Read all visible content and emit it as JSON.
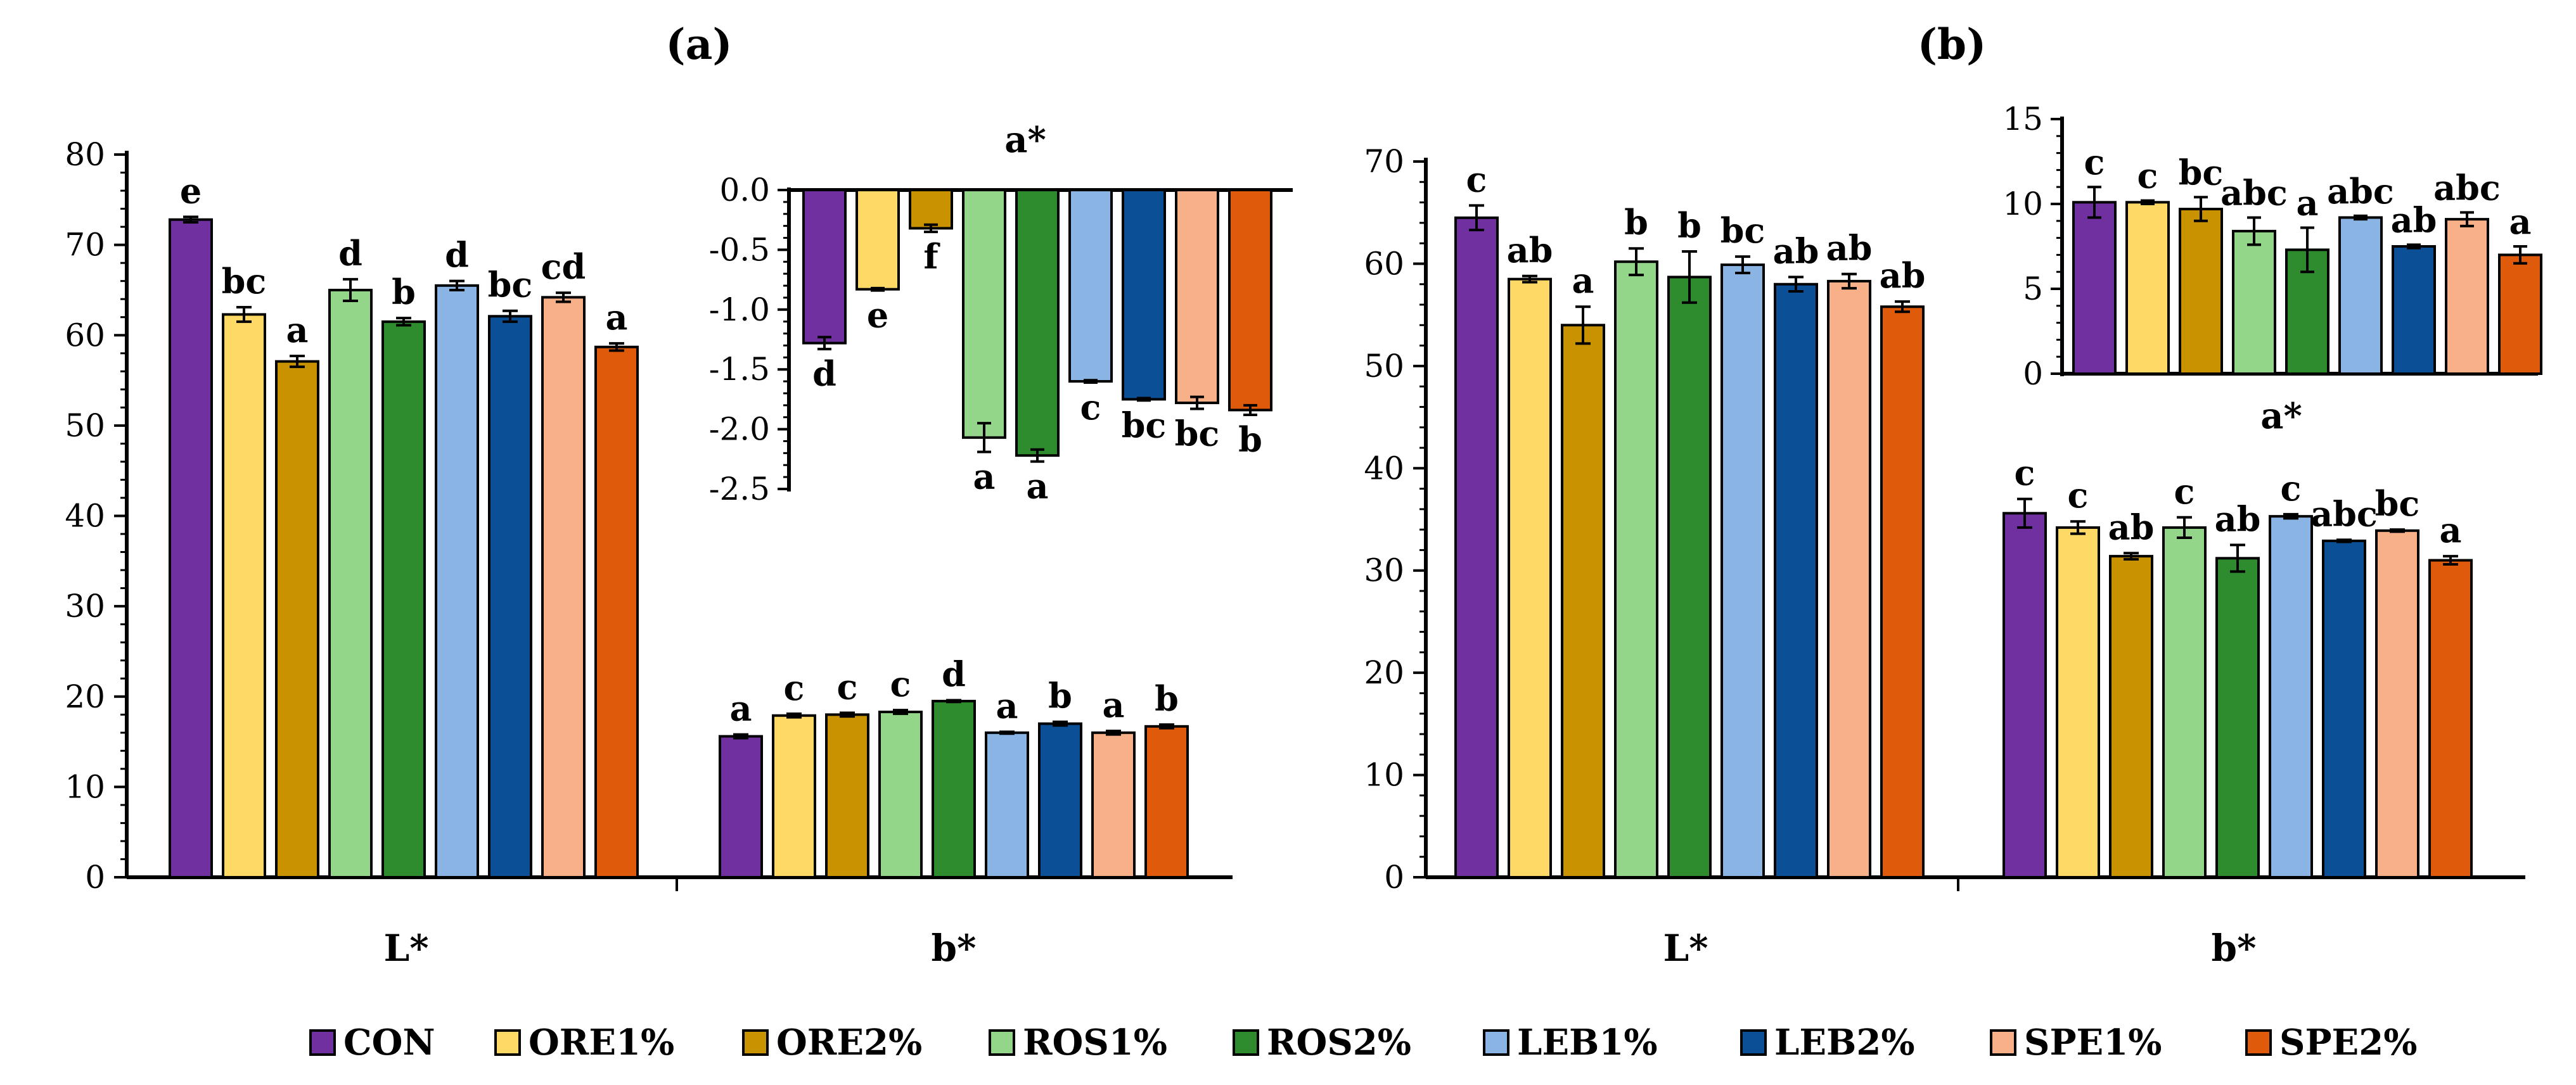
{
  "legend": [
    {
      "name": "CON",
      "color": "#7030A0"
    },
    {
      "name": "ORE1%",
      "color": "#FFD966"
    },
    {
      "name": "ORE2%",
      "color": "#C99200"
    },
    {
      "name": "ROS1%",
      "color": "#93D68A"
    },
    {
      "name": "ROS2%",
      "color": "#2E8B2E"
    },
    {
      "name": "LEB1%",
      "color": "#8AB4E3"
    },
    {
      "name": "LEB2%",
      "color": "#0B4F96"
    },
    {
      "name": "SPE1%",
      "color": "#F8B088"
    },
    {
      "name": "SPE2%",
      "color": "#E05A0C"
    }
  ],
  "chart_data": [
    {
      "type": "bar",
      "id": "a_main",
      "panel_label": "(a)",
      "categories": [
        "L*",
        "b*"
      ],
      "ylim": [
        0,
        80
      ],
      "yticks": [
        0,
        10,
        20,
        30,
        40,
        50,
        60,
        70,
        80
      ],
      "series": [
        {
          "name": "CON",
          "values": [
            72.8,
            15.6
          ],
          "errors": [
            0.3,
            0.2
          ],
          "letters": [
            "e",
            "a"
          ]
        },
        {
          "name": "ORE1%",
          "values": [
            62.3,
            17.9
          ],
          "errors": [
            0.8,
            0.2
          ],
          "letters": [
            "bc",
            "c"
          ]
        },
        {
          "name": "ORE2%",
          "values": [
            57.1,
            18.0
          ],
          "errors": [
            0.6,
            0.2
          ],
          "letters": [
            "a",
            "c"
          ]
        },
        {
          "name": "ROS1%",
          "values": [
            65.0,
            18.3
          ],
          "errors": [
            1.2,
            0.2
          ],
          "letters": [
            "d",
            "c"
          ]
        },
        {
          "name": "ROS2%",
          "values": [
            61.5,
            19.5
          ],
          "errors": [
            0.4,
            0.1
          ],
          "letters": [
            "b",
            "d"
          ]
        },
        {
          "name": "LEB1%",
          "values": [
            65.5,
            16.0
          ],
          "errors": [
            0.5,
            0.1
          ],
          "letters": [
            "d",
            "a"
          ]
        },
        {
          "name": "LEB2%",
          "values": [
            62.1,
            17.0
          ],
          "errors": [
            0.6,
            0.2
          ],
          "letters": [
            "bc",
            "b"
          ]
        },
        {
          "name": "SPE1%",
          "values": [
            64.2,
            16.0
          ],
          "errors": [
            0.5,
            0.2
          ],
          "letters": [
            "cd",
            "a"
          ]
        },
        {
          "name": "SPE2%",
          "values": [
            58.7,
            16.7
          ],
          "errors": [
            0.4,
            0.2
          ],
          "letters": [
            "a",
            "b"
          ]
        }
      ]
    },
    {
      "type": "bar",
      "id": "a_inset",
      "title": "a*",
      "ylim": [
        -2.5,
        0
      ],
      "yticks": [
        0.0,
        -0.5,
        -1.0,
        -1.5,
        -2.0,
        -2.5
      ],
      "ytick_labels": [
        "0.0",
        "-0.5",
        "-1.0",
        "-1.5",
        "-2.0",
        "-2.5"
      ],
      "series": [
        {
          "name": "CON",
          "value": -1.28,
          "error": 0.05,
          "letter": "d"
        },
        {
          "name": "ORE1%",
          "value": -0.83,
          "error": 0.01,
          "letter": "e"
        },
        {
          "name": "ORE2%",
          "value": -0.32,
          "error": 0.03,
          "letter": "f"
        },
        {
          "name": "ROS1%",
          "value": -2.07,
          "error": 0.12,
          "letter": "a"
        },
        {
          "name": "ROS2%",
          "value": -2.22,
          "error": 0.05,
          "letter": "a"
        },
        {
          "name": "LEB1%",
          "value": -1.6,
          "error": 0.01,
          "letter": "c"
        },
        {
          "name": "LEB2%",
          "value": -1.75,
          "error": 0.01,
          "letter": "bc"
        },
        {
          "name": "SPE1%",
          "value": -1.78,
          "error": 0.05,
          "letter": "bc"
        },
        {
          "name": "SPE2%",
          "value": -1.84,
          "error": 0.04,
          "letter": "b"
        }
      ]
    },
    {
      "type": "bar",
      "id": "b_main",
      "panel_label": "(b)",
      "categories": [
        "L*",
        "b*"
      ],
      "ylim": [
        0,
        70
      ],
      "yticks": [
        0,
        10,
        20,
        30,
        40,
        50,
        60,
        70
      ],
      "series": [
        {
          "name": "CON",
          "values": [
            64.5,
            35.6
          ],
          "errors": [
            1.2,
            1.4
          ],
          "letters": [
            "c",
            "c"
          ]
        },
        {
          "name": "ORE1%",
          "values": [
            58.5,
            34.2
          ],
          "errors": [
            0.3,
            0.6
          ],
          "letters": [
            "ab",
            "c"
          ]
        },
        {
          "name": "ORE2%",
          "values": [
            54.0,
            31.4
          ],
          "errors": [
            1.8,
            0.3
          ],
          "letters": [
            "a",
            "ab"
          ]
        },
        {
          "name": "ROS1%",
          "values": [
            60.2,
            34.2
          ],
          "errors": [
            1.3,
            1.0
          ],
          "letters": [
            "b",
            "c"
          ]
        },
        {
          "name": "ROS2%",
          "values": [
            58.7,
            31.2
          ],
          "errors": [
            2.5,
            1.3
          ],
          "letters": [
            "b",
            "ab"
          ]
        },
        {
          "name": "LEB1%",
          "values": [
            59.9,
            35.3
          ],
          "errors": [
            0.8,
            0.2
          ],
          "letters": [
            "bc",
            "c"
          ]
        },
        {
          "name": "LEB2%",
          "values": [
            58.0,
            32.9
          ],
          "errors": [
            0.7,
            0.1
          ],
          "letters": [
            "ab",
            "abc"
          ]
        },
        {
          "name": "SPE1%",
          "values": [
            58.3,
            33.9
          ],
          "errors": [
            0.7,
            0.1
          ],
          "letters": [
            "ab",
            "bc"
          ]
        },
        {
          "name": "SPE2%",
          "values": [
            55.8,
            31.0
          ],
          "errors": [
            0.5,
            0.4
          ],
          "letters": [
            "ab",
            "a"
          ]
        }
      ]
    },
    {
      "type": "bar",
      "id": "b_inset",
      "title": "a*",
      "ylim": [
        0,
        15
      ],
      "yticks": [
        0,
        5,
        10,
        15
      ],
      "ytick_labels": [
        "0",
        "5",
        "10",
        "15"
      ],
      "series": [
        {
          "name": "CON",
          "value": 10.1,
          "error": 0.9,
          "letter": "c"
        },
        {
          "name": "ORE1%",
          "value": 10.1,
          "error": 0.1,
          "letter": "c"
        },
        {
          "name": "ORE2%",
          "value": 9.7,
          "error": 0.7,
          "letter": "bc"
        },
        {
          "name": "ROS1%",
          "value": 8.4,
          "error": 0.8,
          "letter": "abc"
        },
        {
          "name": "ROS2%",
          "value": 7.3,
          "error": 1.3,
          "letter": "a"
        },
        {
          "name": "LEB1%",
          "value": 9.2,
          "error": 0.1,
          "letter": "abc"
        },
        {
          "name": "LEB2%",
          "value": 7.5,
          "error": 0.1,
          "letter": "ab"
        },
        {
          "name": "SPE1%",
          "value": 9.1,
          "error": 0.4,
          "letter": "abc"
        },
        {
          "name": "SPE2%",
          "value": 7.0,
          "error": 0.5,
          "letter": "a"
        }
      ]
    }
  ]
}
